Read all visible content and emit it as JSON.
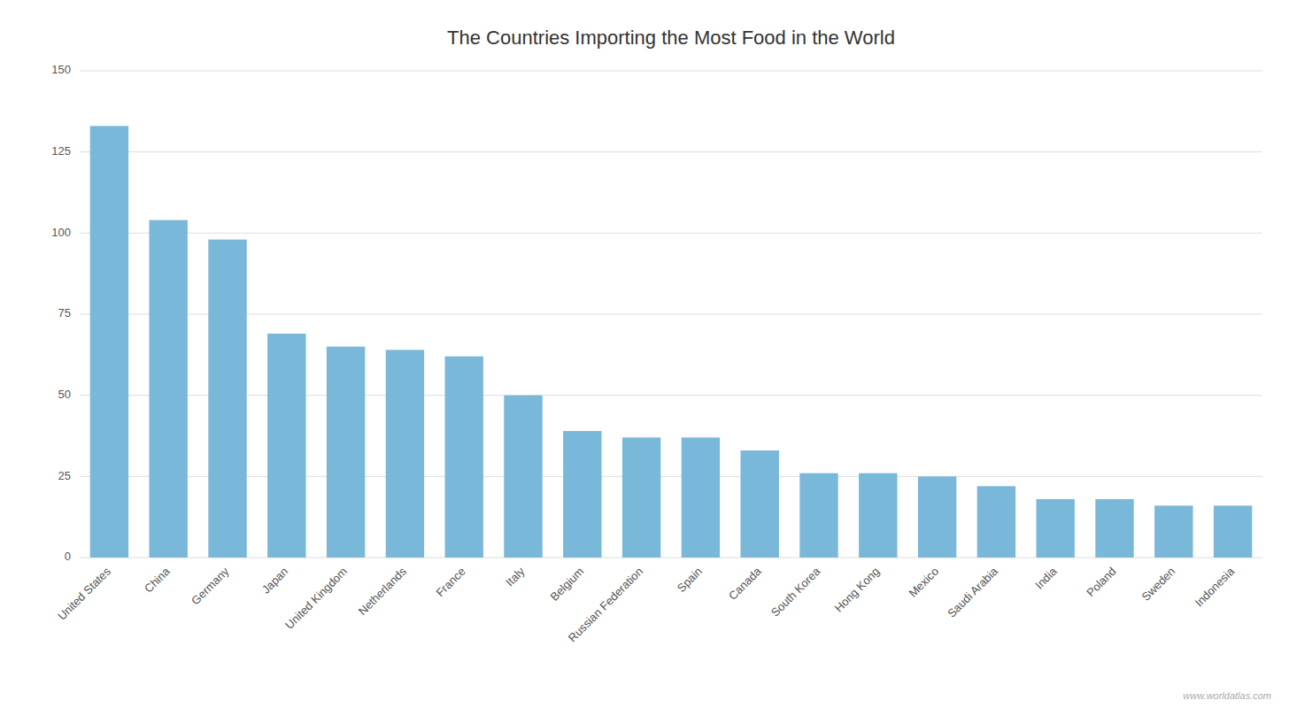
{
  "chart_data": {
    "type": "bar",
    "title": "The Countries Importing the Most Food in the World",
    "categories": [
      "United States",
      "China",
      "Germany",
      "Japan",
      "United Kingdom",
      "Netherlands",
      "France",
      "Italy",
      "Belgium",
      "Russian Federation",
      "Spain",
      "Canada",
      "South Korea",
      "Hong Kong",
      "Mexico",
      "Saudi Arabia",
      "India",
      "Poland",
      "Sweden",
      "Indonesia"
    ],
    "values": [
      133,
      104,
      98,
      69,
      65,
      64,
      62,
      50,
      39,
      37,
      37,
      33,
      26,
      26,
      25,
      22,
      18,
      18,
      16,
      16
    ],
    "color": "#7ab8d9",
    "ylim": [
      0,
      150
    ],
    "yticks": [
      0,
      25,
      50,
      75,
      100,
      125,
      150
    ],
    "grid": true,
    "annotations": [
      "www.worldatlas.com"
    ]
  }
}
